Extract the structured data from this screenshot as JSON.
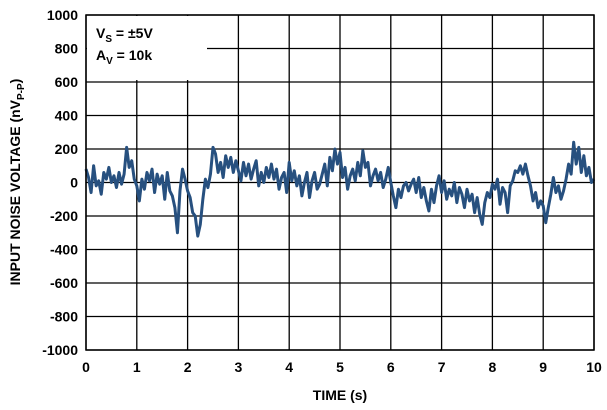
{
  "chart_data": {
    "type": "line",
    "annotations": [
      {
        "text": "V",
        "subscript": "S",
        "suffix": " = ±5V"
      },
      {
        "text": "A",
        "subscript": "V",
        "suffix": " = 10k"
      }
    ],
    "y_label": {
      "text": "INPUT NOISE VOLTAGE (nV",
      "subscript": "P-P",
      "suffix": ")"
    },
    "x_label": "TIME (s)",
    "xlim": [
      0,
      10
    ],
    "xticks": [
      0,
      1,
      2,
      3,
      4,
      5,
      6,
      7,
      8,
      9,
      10
    ],
    "ylim": [
      -1000,
      1000
    ],
    "yticks": [
      -1000,
      -800,
      -600,
      -400,
      -200,
      0,
      200,
      400,
      600,
      800,
      1000
    ],
    "grid": true,
    "x": [
      0,
      0.05,
      0.1,
      0.15,
      0.2,
      0.25,
      0.3,
      0.35,
      0.4,
      0.45,
      0.5,
      0.55,
      0.6,
      0.65,
      0.7,
      0.75,
      0.8,
      0.85,
      0.9,
      0.95,
      1,
      1.05,
      1.1,
      1.15,
      1.2,
      1.25,
      1.3,
      1.35,
      1.4,
      1.45,
      1.5,
      1.55,
      1.6,
      1.65,
      1.7,
      1.75,
      1.8,
      1.85,
      1.9,
      1.95,
      2,
      2.05,
      2.1,
      2.15,
      2.2,
      2.25,
      2.3,
      2.35,
      2.4,
      2.45,
      2.5,
      2.55,
      2.6,
      2.65,
      2.7,
      2.75,
      2.8,
      2.85,
      2.9,
      2.95,
      3,
      3.05,
      3.1,
      3.15,
      3.2,
      3.25,
      3.3,
      3.35,
      3.4,
      3.45,
      3.5,
      3.55,
      3.6,
      3.65,
      3.7,
      3.75,
      3.8,
      3.85,
      3.9,
      3.95,
      4,
      4.05,
      4.1,
      4.15,
      4.2,
      4.25,
      4.3,
      4.35,
      4.4,
      4.45,
      4.5,
      4.55,
      4.6,
      4.65,
      4.7,
      4.75,
      4.8,
      4.85,
      4.9,
      4.95,
      5,
      5.05,
      5.1,
      5.15,
      5.2,
      5.25,
      5.3,
      5.35,
      5.4,
      5.45,
      5.5,
      5.55,
      5.6,
      5.65,
      5.7,
      5.75,
      5.8,
      5.85,
      5.9,
      5.95,
      6,
      6.05,
      6.1,
      6.15,
      6.2,
      6.25,
      6.3,
      6.35,
      6.4,
      6.45,
      6.5,
      6.55,
      6.6,
      6.65,
      6.7,
      6.75,
      6.8,
      6.85,
      6.9,
      6.95,
      7,
      7.05,
      7.1,
      7.15,
      7.2,
      7.25,
      7.3,
      7.35,
      7.4,
      7.45,
      7.5,
      7.55,
      7.6,
      7.65,
      7.7,
      7.75,
      7.8,
      7.85,
      7.9,
      7.95,
      8,
      8.05,
      8.1,
      8.15,
      8.2,
      8.25,
      8.3,
      8.35,
      8.4,
      8.45,
      8.5,
      8.55,
      8.6,
      8.65,
      8.7,
      8.75,
      8.8,
      8.85,
      8.9,
      8.95,
      9,
      9.05,
      9.1,
      9.15,
      9.2,
      9.25,
      9.3,
      9.35,
      9.4,
      9.45,
      9.5,
      9.55,
      9.6,
      9.65,
      9.7,
      9.75,
      9.8,
      9.85,
      9.9,
      9.95,
      10
    ],
    "series": [
      {
        "color": "#27507f",
        "values": [
          80,
          30,
          -60,
          100,
          -20,
          10,
          -70,
          60,
          20,
          90,
          0,
          40,
          -30,
          60,
          -10,
          50,
          210,
          90,
          130,
          20,
          -20,
          -110,
          20,
          -40,
          60,
          10,
          80,
          -60,
          50,
          -10,
          40,
          -100,
          60,
          -50,
          -80,
          -150,
          -300,
          -50,
          80,
          20,
          -50,
          -90,
          -180,
          -200,
          -320,
          -250,
          -100,
          20,
          -30,
          50,
          210,
          170,
          60,
          120,
          30,
          160,
          90,
          150,
          60,
          130,
          70,
          10,
          120,
          40,
          110,
          20,
          80,
          130,
          -20,
          60,
          0,
          90,
          30,
          110,
          20,
          80,
          -40,
          30,
          60,
          -60,
          120,
          10,
          70,
          -20,
          40,
          -80,
          0,
          60,
          -90,
          10,
          60,
          -40,
          -10,
          50,
          110,
          -20,
          150,
          70,
          200,
          110,
          180,
          30,
          90,
          -40,
          40,
          80,
          10,
          120,
          40,
          190,
          90,
          120,
          -20,
          40,
          80,
          10,
          60,
          -30,
          20,
          90,
          0,
          -80,
          -150,
          -40,
          -90,
          -20,
          0,
          -50,
          -10,
          20,
          -60,
          30,
          -90,
          -30,
          -110,
          -170,
          -40,
          -120,
          -20,
          40,
          -60,
          10,
          -100,
          -40,
          -80,
          0,
          -120,
          -30,
          -70,
          -150,
          -40,
          -110,
          -70,
          -180,
          -90,
          -190,
          -250,
          -120,
          -60,
          -90,
          -10,
          -40,
          20,
          -130,
          -30,
          -60,
          -180,
          -20,
          10,
          70,
          60,
          100,
          50,
          110,
          40,
          -20,
          -110,
          -60,
          -150,
          -110,
          -140,
          -240,
          -150,
          -70,
          30,
          -60,
          -20,
          -100,
          -50,
          20,
          110,
          50,
          240,
          110,
          210,
          60,
          160,
          40,
          90,
          0,
          20
        ]
      }
    ]
  }
}
